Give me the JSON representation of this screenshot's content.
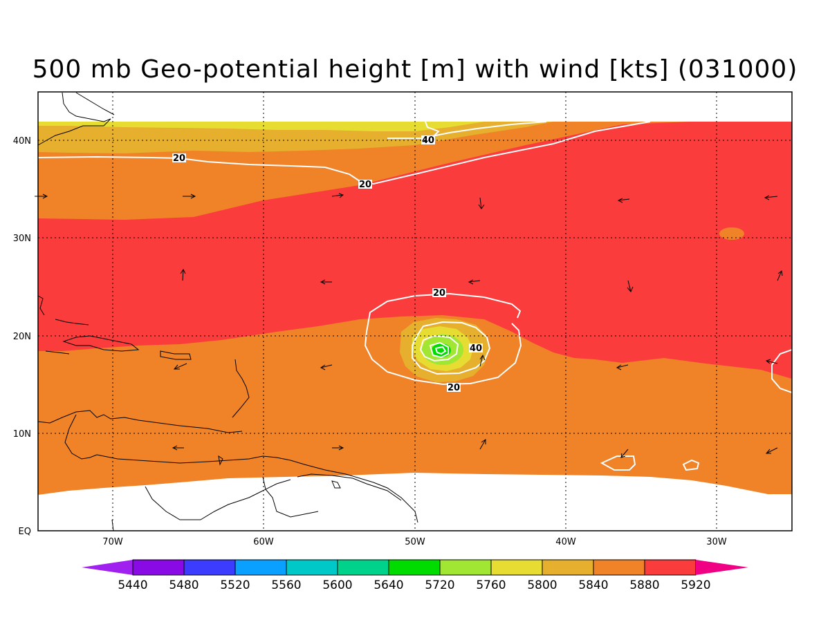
{
  "title": "500 mb Geo-potential height [m] with wind [kts] (031000)",
  "lat_labels": [
    {
      "label": "40N",
      "lat": 40
    },
    {
      "label": "30N",
      "lat": 30
    },
    {
      "label": "20N",
      "lat": 20
    },
    {
      "label": "10N",
      "lat": 10
    },
    {
      "label": "EQ",
      "lat": 0
    }
  ],
  "lon_labels": [
    {
      "label": "70W",
      "lon": -70
    },
    {
      "label": "60W",
      "lon": -60
    },
    {
      "label": "50W",
      "lon": -50
    },
    {
      "label": "40W",
      "lon": -40
    },
    {
      "label": "30W",
      "lon": -30
    }
  ],
  "contour_labels": [
    "40",
    "20",
    "20",
    "20",
    "40",
    "20"
  ],
  "colorbar": {
    "labels": [
      "5440",
      "5480",
      "5520",
      "5560",
      "5600",
      "5640",
      "5720",
      "5760",
      "5800",
      "5840",
      "5880",
      "5920"
    ],
    "colors": [
      "#a020f0",
      "#8a0ae6",
      "#3c3cff",
      "#0aa0ff",
      "#00c8c8",
      "#00d28c",
      "#00dc00",
      "#a0e632",
      "#e6dc32",
      "#e6af2d",
      "#f08228",
      "#fa3c3c",
      "#f00082"
    ]
  },
  "fill_colors": {
    "c5640": "#00dc00",
    "c5720": "#a0e632",
    "c5760": "#e6dc32",
    "c5800": "#e6af2d",
    "c5840": "#f08228",
    "c5880": "#fa3c3c"
  }
}
